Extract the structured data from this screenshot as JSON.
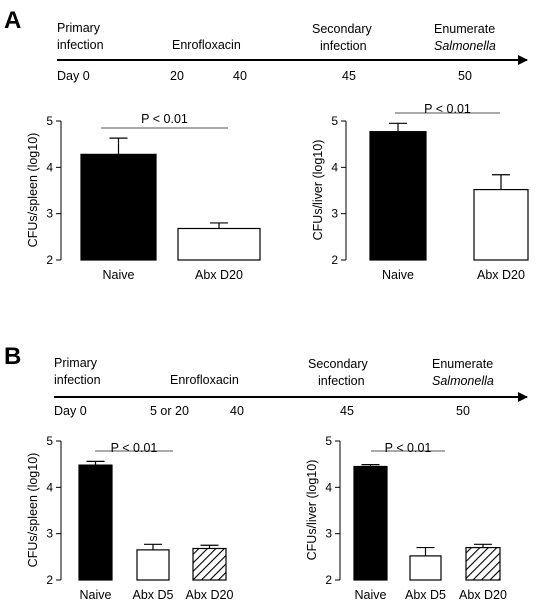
{
  "panels": [
    {
      "letter": "A",
      "timeline": {
        "stages": [
          {
            "line1": "Primary",
            "line2": "infection",
            "italic2": false
          },
          {
            "line1": "Enrofloxacin",
            "line2": "",
            "italic2": false
          },
          {
            "line1": "Secondary",
            "line2": "infection",
            "italic2": false
          },
          {
            "line1": "Enumerate",
            "line2": "Salmonella",
            "italic2": true
          }
        ],
        "days": [
          "Day 0",
          "20",
          "40",
          "45",
          "50"
        ]
      }
    },
    {
      "letter": "B",
      "timeline": {
        "stages": [
          {
            "line1": "Primary",
            "line2": "infection",
            "italic2": false
          },
          {
            "line1": "Enrofloxacin",
            "line2": "",
            "italic2": false
          },
          {
            "line1": "Secondary",
            "line2": "infection",
            "italic2": false
          },
          {
            "line1": "Enumerate",
            "line2": "Salmonella",
            "italic2": true
          }
        ],
        "days": [
          "Day 0",
          "5 or 20",
          "40",
          "45",
          "50"
        ]
      }
    }
  ],
  "chart_data": [
    {
      "type": "bar",
      "panel": "A",
      "ylabel": "CFUs/spleen (log10)",
      "ylim": [
        2,
        5
      ],
      "yticks": [
        "2",
        "3",
        "4",
        "5"
      ],
      "categories": [
        "Naive",
        "Abx D20"
      ],
      "values": [
        4.28,
        2.68
      ],
      "errors": [
        0.35,
        0.12
      ],
      "fills": [
        "solid",
        "open"
      ],
      "annotation": "P < 0.01",
      "grid": false
    },
    {
      "type": "bar",
      "panel": "A",
      "ylabel": "CFUs/liver (log10)",
      "ylim": [
        2,
        5
      ],
      "yticks": [
        "2",
        "3",
        "4",
        "5"
      ],
      "categories": [
        "Naive",
        "Abx D20"
      ],
      "values": [
        4.77,
        3.52
      ],
      "errors": [
        0.18,
        0.32
      ],
      "fills": [
        "solid",
        "open"
      ],
      "annotation": "P < 0.01",
      "grid": false
    },
    {
      "type": "bar",
      "panel": "B",
      "ylabel": "CFUs/spleen (log10)",
      "ylim": [
        2,
        5
      ],
      "yticks": [
        "2",
        "3",
        "4",
        "5"
      ],
      "categories": [
        "Naive",
        "Abx D5",
        "Abx D20"
      ],
      "values": [
        4.48,
        2.65,
        2.68
      ],
      "errors": [
        0.08,
        0.12,
        0.07
      ],
      "fills": [
        "solid",
        "open",
        "hatched"
      ],
      "annotation": "P < 0.01",
      "grid": false
    },
    {
      "type": "bar",
      "panel": "B",
      "ylabel": "CFUs/liver (log10)",
      "ylim": [
        2,
        5
      ],
      "yticks": [
        "2",
        "3",
        "4",
        "5"
      ],
      "categories": [
        "Naive",
        "Abx D5",
        "Abx D20"
      ],
      "values": [
        4.45,
        2.52,
        2.7
      ],
      "errors": [
        0.04,
        0.18,
        0.07
      ],
      "fills": [
        "solid",
        "open",
        "hatched"
      ],
      "annotation": "P < 0.01",
      "grid": false
    }
  ]
}
